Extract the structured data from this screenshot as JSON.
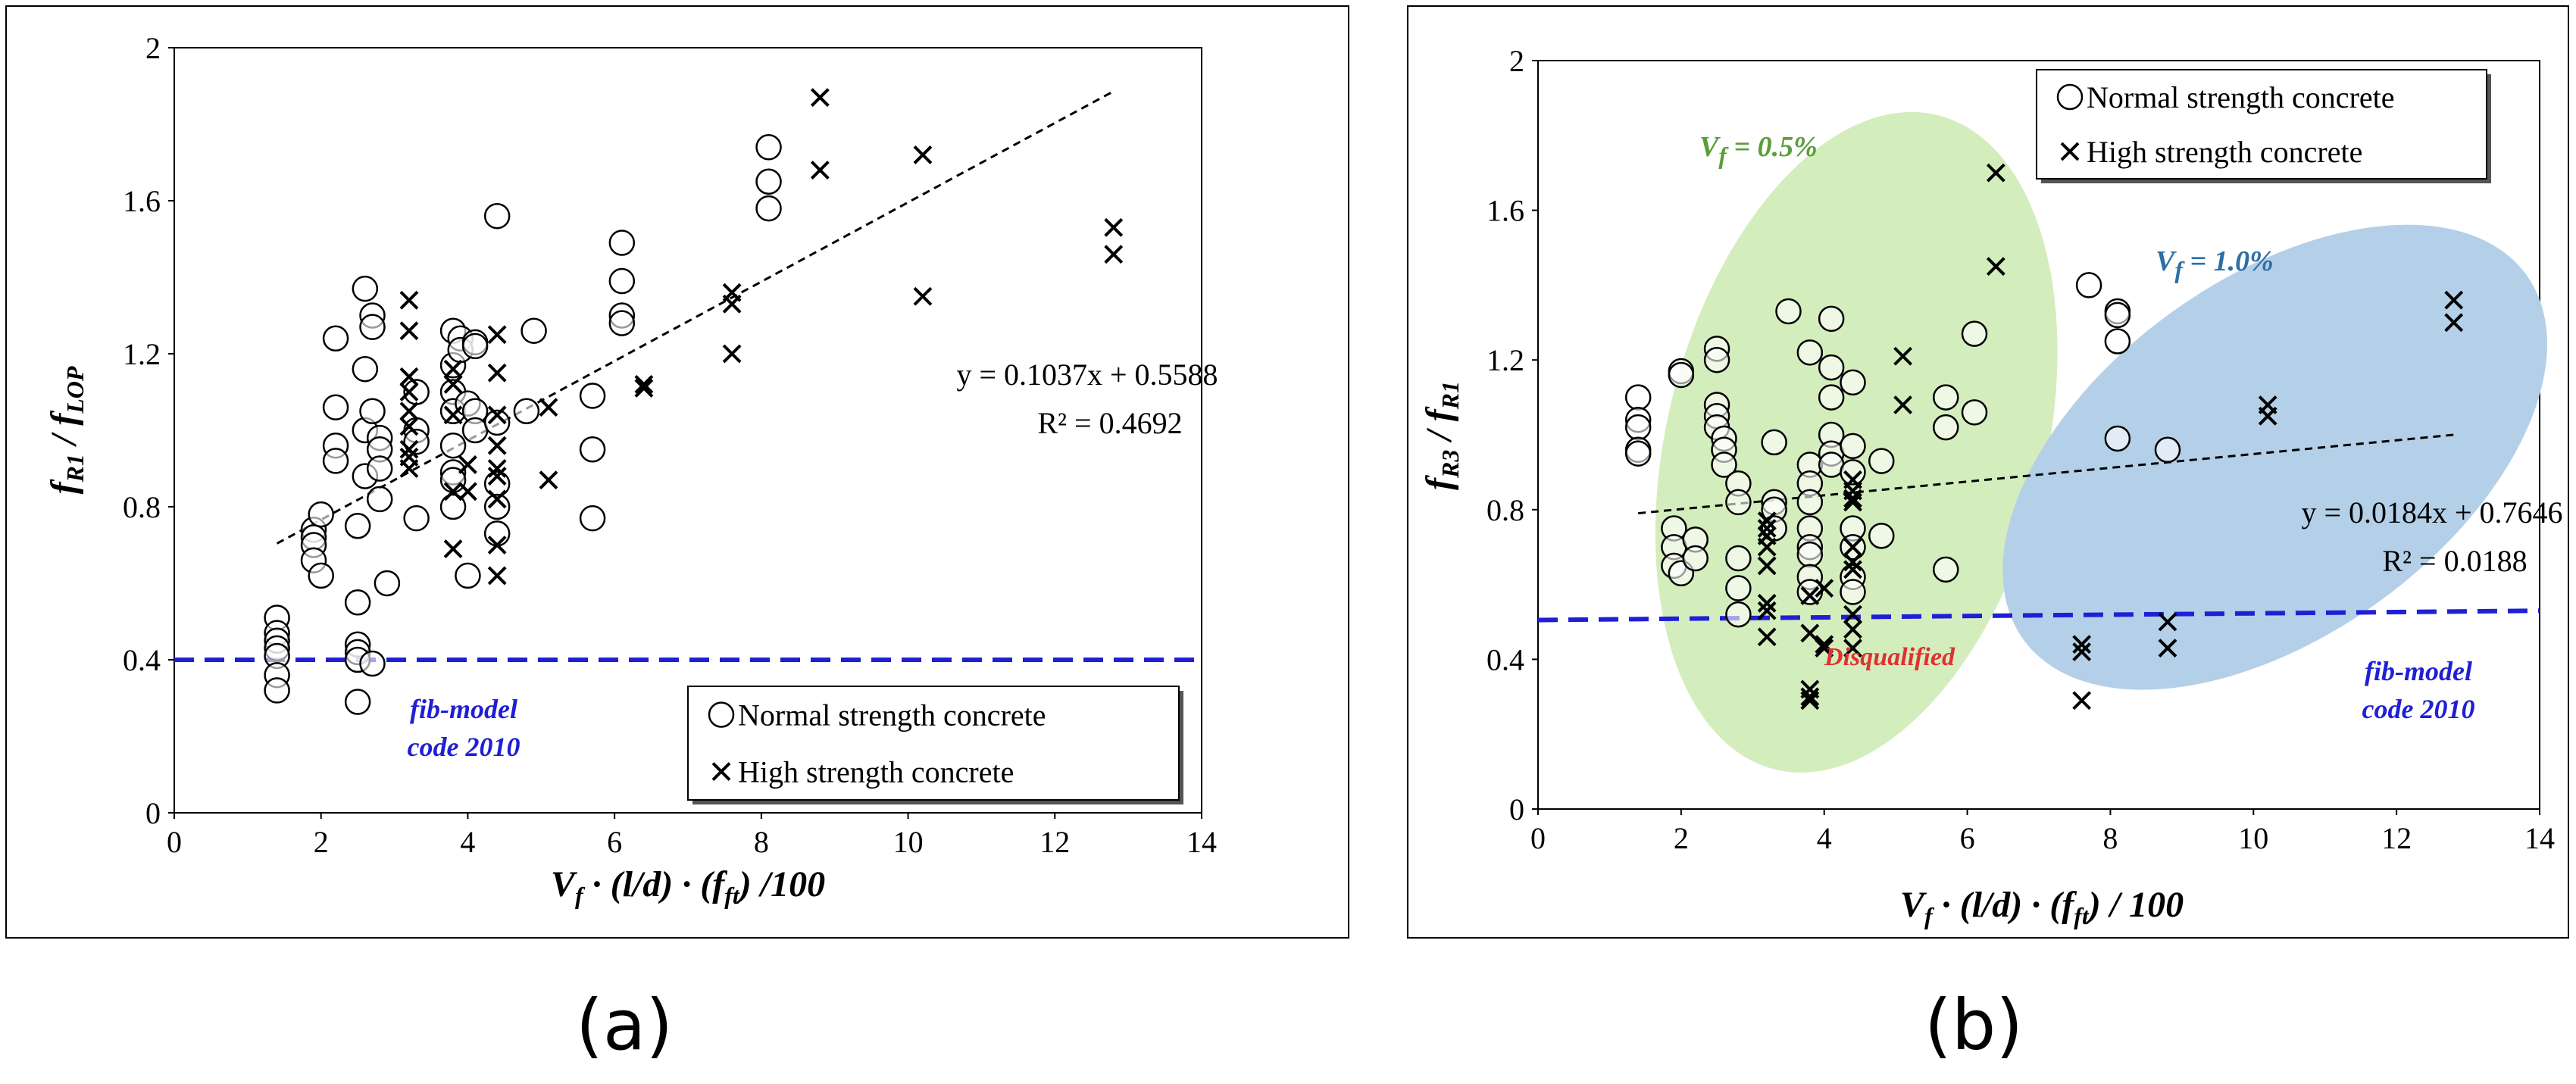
{
  "chart_data": [
    {
      "type": "scatter",
      "panel_label": "(a)",
      "xlim": [
        0,
        14
      ],
      "ylim": [
        0,
        2
      ],
      "xticks": [
        "0",
        "2",
        "4",
        "6",
        "8",
        "10",
        "12",
        "14"
      ],
      "yticks": [
        "0",
        "0.4",
        "0.8",
        "1.2",
        "1.6",
        "2"
      ],
      "xlabel": "V_f · (l/d) · (f_ft) /100",
      "ylabel": "f_R1 / f_LOP",
      "grid": false,
      "legend": {
        "placement": "bottom-right",
        "entries": [
          "Normal strength concrete",
          "High strength concrete"
        ]
      },
      "series": [
        {
          "name": "Normal strength concrete",
          "marker": "circle",
          "points": [
            [
              1.4,
              0.51
            ],
            [
              1.4,
              0.47
            ],
            [
              1.4,
              0.45
            ],
            [
              1.4,
              0.43
            ],
            [
              1.4,
              0.41
            ],
            [
              1.4,
              0.36
            ],
            [
              1.4,
              0.32
            ],
            [
              1.9,
              0.74
            ],
            [
              1.9,
              0.72
            ],
            [
              1.9,
              0.7
            ],
            [
              1.9,
              0.66
            ],
            [
              2.0,
              0.62
            ],
            [
              2.0,
              0.78
            ],
            [
              2.2,
              1.24
            ],
            [
              2.2,
              1.06
            ],
            [
              2.2,
              0.96
            ],
            [
              2.2,
              0.92
            ],
            [
              2.5,
              0.75
            ],
            [
              2.5,
              0.55
            ],
            [
              2.5,
              0.44
            ],
            [
              2.5,
              0.42
            ],
            [
              2.5,
              0.4
            ],
            [
              2.5,
              0.29
            ],
            [
              2.7,
              0.39
            ],
            [
              2.6,
              1.37
            ],
            [
              2.7,
              1.3
            ],
            [
              2.7,
              1.27
            ],
            [
              2.6,
              1.16
            ],
            [
              2.6,
              1.0
            ],
            [
              2.7,
              1.05
            ],
            [
              2.6,
              0.88
            ],
            [
              2.8,
              0.98
            ],
            [
              2.8,
              0.95
            ],
            [
              2.8,
              0.9
            ],
            [
              2.8,
              0.82
            ],
            [
              2.9,
              0.6
            ],
            [
              3.3,
              1.1
            ],
            [
              3.3,
              1.0
            ],
            [
              3.3,
              0.97
            ],
            [
              3.3,
              0.77
            ],
            [
              3.8,
              1.26
            ],
            [
              3.8,
              1.17
            ],
            [
              3.8,
              1.1
            ],
            [
              3.8,
              1.05
            ],
            [
              3.8,
              0.96
            ],
            [
              3.8,
              0.89
            ],
            [
              3.8,
              0.87
            ],
            [
              3.8,
              0.8
            ],
            [
              3.9,
              1.24
            ],
            [
              3.9,
              1.21
            ],
            [
              4.0,
              1.07
            ],
            [
              4.0,
              0.62
            ],
            [
              4.1,
              1.23
            ],
            [
              4.1,
              1.22
            ],
            [
              4.1,
              1.05
            ],
            [
              4.1,
              1.0
            ],
            [
              4.4,
              1.56
            ],
            [
              4.4,
              1.02
            ],
            [
              4.4,
              0.86
            ],
            [
              4.4,
              0.8
            ],
            [
              4.4,
              0.73
            ],
            [
              4.8,
              1.05
            ],
            [
              4.9,
              1.26
            ],
            [
              5.7,
              1.09
            ],
            [
              5.7,
              0.95
            ],
            [
              5.7,
              0.77
            ],
            [
              6.1,
              1.49
            ],
            [
              6.1,
              1.39
            ],
            [
              6.1,
              1.3
            ],
            [
              6.1,
              1.28
            ],
            [
              8.1,
              1.74
            ],
            [
              8.1,
              1.65
            ],
            [
              8.1,
              1.58
            ]
          ]
        },
        {
          "name": "High strength concrete",
          "marker": "cross",
          "points": [
            [
              3.2,
              1.34
            ],
            [
              3.2,
              1.26
            ],
            [
              3.2,
              1.14
            ],
            [
              3.2,
              1.1
            ],
            [
              3.2,
              1.05
            ],
            [
              3.2,
              1.01
            ],
            [
              3.2,
              0.95
            ],
            [
              3.2,
              0.93
            ],
            [
              3.2,
              0.9
            ],
            [
              3.8,
              1.16
            ],
            [
              3.8,
              1.12
            ],
            [
              3.8,
              1.04
            ],
            [
              3.8,
              0.84
            ],
            [
              3.8,
              0.69
            ],
            [
              4.0,
              0.91
            ],
            [
              4.0,
              0.84
            ],
            [
              4.4,
              1.25
            ],
            [
              4.4,
              1.15
            ],
            [
              4.4,
              1.04
            ],
            [
              4.4,
              0.96
            ],
            [
              4.4,
              0.9
            ],
            [
              4.4,
              0.88
            ],
            [
              4.4,
              0.82
            ],
            [
              4.4,
              0.7
            ],
            [
              4.4,
              0.62
            ],
            [
              5.1,
              1.06
            ],
            [
              5.1,
              0.87
            ],
            [
              6.4,
              1.12
            ],
            [
              6.4,
              1.11
            ],
            [
              7.6,
              1.36
            ],
            [
              7.6,
              1.33
            ],
            [
              7.6,
              1.2
            ],
            [
              8.8,
              1.87
            ],
            [
              8.8,
              1.68
            ],
            [
              10.2,
              1.72
            ],
            [
              10.2,
              1.35
            ],
            [
              12.8,
              1.53
            ],
            [
              12.8,
              1.46
            ]
          ]
        }
      ],
      "trendline": {
        "x_range": [
          1.4,
          12.8
        ],
        "slope": 0.1037,
        "intercept": 0.5588,
        "equation": "y = 0.1037x + 0.5588",
        "r_squared": "R² = 0.4692"
      },
      "reference_line": {
        "y": 0.4,
        "label_line1": "fib-model",
        "label_line2": "code 2010",
        "color": "#1f1fd6"
      }
    },
    {
      "type": "scatter",
      "panel_label": "(b)",
      "xlim": [
        0,
        14
      ],
      "ylim": [
        0,
        2
      ],
      "xticks": [
        "0",
        "2",
        "4",
        "6",
        "8",
        "10",
        "12",
        "14"
      ],
      "yticks": [
        "0",
        "0.4",
        "0.8",
        "1.2",
        "1.6",
        "2"
      ],
      "xlabel": "V_f · (l/d) · (f_ft) / 100",
      "ylabel": "f_R3 / f_R1",
      "grid": false,
      "legend": {
        "placement": "top-right",
        "entries": [
          "Normal strength concrete",
          "High strength concrete"
        ]
      },
      "series": [
        {
          "name": "Normal strength concrete",
          "marker": "circle",
          "points": [
            [
              1.4,
              1.1
            ],
            [
              1.4,
              1.04
            ],
            [
              1.4,
              1.02
            ],
            [
              1.4,
              0.96
            ],
            [
              1.4,
              0.95
            ],
            [
              1.9,
              0.75
            ],
            [
              1.9,
              0.7
            ],
            [
              1.9,
              0.65
            ],
            [
              2.0,
              1.17
            ],
            [
              2.0,
              1.16
            ],
            [
              2.0,
              0.63
            ],
            [
              2.2,
              0.72
            ],
            [
              2.2,
              0.67
            ],
            [
              2.5,
              1.23
            ],
            [
              2.5,
              1.2
            ],
            [
              2.5,
              1.08
            ],
            [
              2.5,
              1.05
            ],
            [
              2.5,
              1.02
            ],
            [
              2.6,
              0.99
            ],
            [
              2.6,
              0.96
            ],
            [
              2.6,
              0.92
            ],
            [
              2.8,
              0.87
            ],
            [
              2.8,
              0.82
            ],
            [
              2.8,
              0.67
            ],
            [
              2.8,
              0.59
            ],
            [
              2.8,
              0.52
            ],
            [
              3.3,
              0.98
            ],
            [
              3.3,
              0.82
            ],
            [
              3.3,
              0.8
            ],
            [
              3.3,
              0.75
            ],
            [
              3.5,
              1.33
            ],
            [
              3.8,
              1.22
            ],
            [
              3.8,
              0.92
            ],
            [
              3.8,
              0.87
            ],
            [
              3.8,
              0.82
            ],
            [
              3.8,
              0.75
            ],
            [
              3.8,
              0.7
            ],
            [
              3.8,
              0.68
            ],
            [
              3.8,
              0.62
            ],
            [
              3.8,
              0.58
            ],
            [
              4.1,
              1.31
            ],
            [
              4.1,
              1.18
            ],
            [
              4.1,
              1.1
            ],
            [
              4.1,
              1.0
            ],
            [
              4.1,
              0.95
            ],
            [
              4.1,
              0.92
            ],
            [
              4.4,
              1.14
            ],
            [
              4.4,
              0.97
            ],
            [
              4.4,
              0.9
            ],
            [
              4.4,
              0.75
            ],
            [
              4.4,
              0.7
            ],
            [
              4.4,
              0.62
            ],
            [
              4.4,
              0.58
            ],
            [
              4.8,
              0.93
            ],
            [
              4.8,
              0.73
            ],
            [
              5.7,
              1.1
            ],
            [
              5.7,
              1.02
            ],
            [
              5.7,
              0.64
            ],
            [
              6.1,
              1.27
            ],
            [
              6.1,
              1.06
            ],
            [
              7.7,
              1.4
            ],
            [
              8.1,
              1.33
            ],
            [
              8.1,
              1.32
            ],
            [
              8.1,
              1.25
            ],
            [
              8.1,
              0.99
            ],
            [
              8.8,
              0.96
            ]
          ]
        },
        {
          "name": "High strength concrete",
          "marker": "cross",
          "points": [
            [
              3.2,
              0.77
            ],
            [
              3.2,
              0.75
            ],
            [
              3.2,
              0.73
            ],
            [
              3.2,
              0.7
            ],
            [
              3.2,
              0.65
            ],
            [
              3.2,
              0.55
            ],
            [
              3.2,
              0.53
            ],
            [
              3.2,
              0.46
            ],
            [
              3.8,
              0.57
            ],
            [
              3.8,
              0.47
            ],
            [
              3.8,
              0.32
            ],
            [
              3.8,
              0.3
            ],
            [
              3.8,
              0.29
            ],
            [
              4.0,
              0.59
            ],
            [
              4.0,
              0.44
            ],
            [
              4.0,
              0.43
            ],
            [
              4.4,
              0.88
            ],
            [
              4.4,
              0.85
            ],
            [
              4.4,
              0.83
            ],
            [
              4.4,
              0.82
            ],
            [
              4.4,
              0.7
            ],
            [
              4.4,
              0.66
            ],
            [
              4.4,
              0.64
            ],
            [
              4.4,
              0.52
            ],
            [
              4.4,
              0.48
            ],
            [
              4.4,
              0.43
            ],
            [
              5.1,
              1.21
            ],
            [
              5.1,
              1.08
            ],
            [
              6.4,
              1.7
            ],
            [
              6.4,
              1.45
            ],
            [
              7.6,
              0.44
            ],
            [
              7.6,
              0.42
            ],
            [
              7.6,
              0.29
            ],
            [
              8.8,
              0.5
            ],
            [
              8.8,
              0.43
            ],
            [
              10.2,
              1.08
            ],
            [
              10.2,
              1.05
            ],
            [
              12.8,
              1.36
            ],
            [
              12.8,
              1.3
            ]
          ]
        }
      ],
      "trendline": {
        "x_range": [
          1.4,
          12.8
        ],
        "slope": 0.0184,
        "intercept": 0.7646,
        "equation": "y = 0.0184x + 0.7646",
        "r_squared": "R² = 0.0188"
      },
      "reference_line": {
        "y_start": 0.505,
        "y_end": 0.53,
        "label_line1": "fib-model",
        "label_line2": "code 2010",
        "color": "#1f1fd6"
      },
      "annotations": {
        "vf05": "V_f = 0.5%",
        "vf10": "V_f = 1.0%",
        "disqualified": "Disqualified"
      },
      "colors": {
        "green_ellipse": "#d4edbd",
        "blue_ellipse": "#b4d0e8",
        "green_text": "#5a9e3a",
        "blue_text": "#2e6ea6",
        "red_text": "#e03030"
      }
    }
  ]
}
